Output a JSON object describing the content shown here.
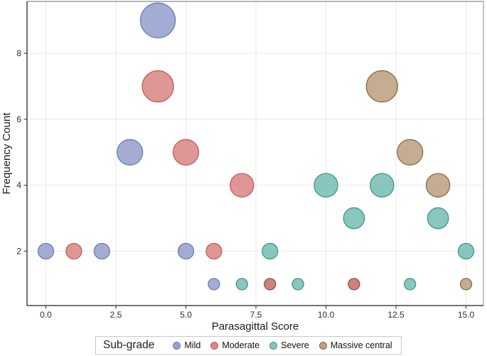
{
  "figure": {
    "background": "#ffffff"
  },
  "chart_data": {
    "type": "scatter",
    "subtype": "bubble",
    "title": "",
    "xlabel": "Parasagittal Score",
    "ylabel": "Frequency Count",
    "xlim": [
      -0.7,
      15.6
    ],
    "ylim": [
      0.35,
      9.6
    ],
    "x_tick_labels": [
      "0.0",
      "2.5",
      "5.0",
      "7.5",
      "10.0",
      "12.5",
      "15.0"
    ],
    "x_tick_values": [
      0,
      2.5,
      5,
      7.5,
      10,
      12.5,
      15
    ],
    "y_tick_labels": [
      "2",
      "4",
      "6",
      "8"
    ],
    "y_tick_values": [
      2,
      4,
      6,
      8
    ],
    "grid": "major gridlines only, light gray",
    "legend_position": "bottom center",
    "size_encoding": "bubble radius increases with frequency count",
    "radius_by_count": {
      "1": 8,
      "2": 11,
      "3": 14.7,
      "4": 16.6,
      "5": 18,
      "7": 22,
      "9": 24.5
    },
    "colors": {
      "grid": "#ebebeb",
      "frame_top_right": "#999fa5",
      "axis_dark": "#40454a",
      "tick_label": "#2e2e2e",
      "axis_title": "#1a1a1a"
    },
    "series": [
      {
        "name": "Mild",
        "fill": "#8f9bc9",
        "stroke": "#6b7ab4",
        "points": [
          {
            "x": 0,
            "y": 2
          },
          {
            "x": 2,
            "y": 2
          },
          {
            "x": 3,
            "y": 5
          },
          {
            "x": 4,
            "y": 9
          },
          {
            "x": 5,
            "y": 2
          },
          {
            "x": 6,
            "y": 1
          }
        ]
      },
      {
        "name": "Moderate",
        "fill": "#d87f7c",
        "stroke": "#bb605c",
        "points": [
          {
            "x": 1,
            "y": 2
          },
          {
            "x": 4,
            "y": 7
          },
          {
            "x": 5,
            "y": 5
          },
          {
            "x": 6,
            "y": 2
          },
          {
            "x": 7,
            "y": 4
          },
          {
            "x": 8,
            "y": 1,
            "fill": "#c2665e",
            "stroke": "#9e4a42"
          },
          {
            "x": 11,
            "y": 1,
            "fill": "#c2665e",
            "stroke": "#9e4a42"
          }
        ]
      },
      {
        "name": "Severe",
        "fill": "#6fbab0",
        "stroke": "#3d968b",
        "points": [
          {
            "x": 7,
            "y": 1
          },
          {
            "x": 8,
            "y": 2
          },
          {
            "x": 9,
            "y": 1
          },
          {
            "x": 10,
            "y": 4
          },
          {
            "x": 11,
            "y": 3
          },
          {
            "x": 12,
            "y": 4
          },
          {
            "x": 13,
            "y": 1
          },
          {
            "x": 14,
            "y": 3
          },
          {
            "x": 15,
            "y": 2
          }
        ]
      },
      {
        "name": "Massive central",
        "fill": "#b99a78",
        "stroke": "#8a6a45",
        "points": [
          {
            "x": 12,
            "y": 7
          },
          {
            "x": 13,
            "y": 5
          },
          {
            "x": 14,
            "y": 4
          },
          {
            "x": 15,
            "y": 1
          }
        ]
      }
    ]
  },
  "legend": {
    "title": "Sub-grade",
    "items": [
      {
        "label": "Mild",
        "fill": "#97a1cb",
        "stroke": "#6b7ab4"
      },
      {
        "label": "Moderate",
        "fill": "#d98885",
        "stroke": "#bb605c"
      },
      {
        "label": "Severe",
        "fill": "#85c3ba",
        "stroke": "#3d968b"
      },
      {
        "label": "Massive central",
        "fill": "#bfa083",
        "stroke": "#8a6a45"
      }
    ]
  }
}
